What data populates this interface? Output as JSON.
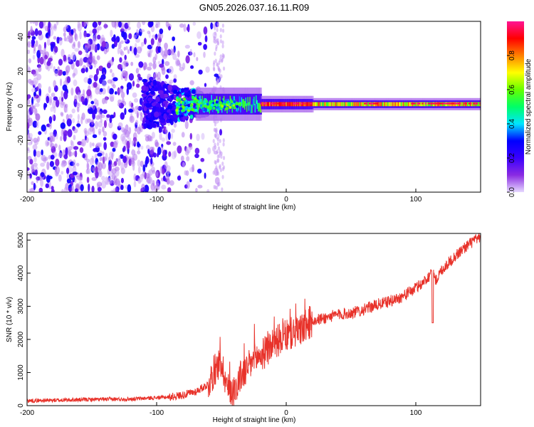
{
  "title": "GN05.2026.037.16.11.R09",
  "chart_data": [
    {
      "type": "heatmap",
      "xlabel": "Height of straight line (km)",
      "ylabel": "Frequency (Hz)",
      "xlim": [
        -200,
        150
      ],
      "ylim": [
        -50,
        49
      ],
      "xticks": [
        -200,
        -100,
        0,
        100
      ],
      "yticks": [
        -40,
        -20,
        0,
        20,
        40
      ],
      "ridge_frequency_hz": 1,
      "colorbar": {
        "label": "Normalized spectral amplitude",
        "range": [
          0,
          1
        ],
        "ticks": [
          "0.0",
          "0.2",
          "0.4",
          "0.6",
          "0.8"
        ],
        "tick_values": [
          0,
          0.2,
          0.4,
          0.6,
          0.8
        ],
        "colormap": [
          "#e6d9ff",
          "#8a2be2",
          "#3a00ff",
          "#0000ff",
          "#00e5ff",
          "#00ff66",
          "#66ff00",
          "#ffff00",
          "#ff8000",
          "#ff0000",
          "#ff1493"
        ]
      },
      "grid": false
    },
    {
      "type": "line",
      "xlabel": "Height of straight line (km)",
      "ylabel": "SNR (10 * v/v)",
      "xlim": [
        -200,
        150
      ],
      "ylim": [
        0,
        5200
      ],
      "xticks": [
        -200,
        -100,
        0,
        100
      ],
      "yticks": [
        0,
        1000,
        2000,
        3000,
        4000,
        5000
      ],
      "color": "#e8322a",
      "series": [
        {
          "name": "SNR",
          "x": [
            -200,
            -180,
            -160,
            -140,
            -120,
            -100,
            -90,
            -80,
            -70,
            -60,
            -55,
            -50,
            -45,
            -40,
            -35,
            -30,
            -25,
            -20,
            -15,
            -10,
            -5,
            0,
            5,
            10,
            15,
            20,
            30,
            40,
            50,
            60,
            70,
            80,
            90,
            100,
            105,
            110,
            113,
            115,
            120,
            130,
            140,
            150
          ],
          "values": [
            150,
            160,
            180,
            190,
            200,
            240,
            260,
            320,
            420,
            650,
            1100,
            1300,
            500,
            450,
            900,
            1100,
            1400,
            1500,
            1650,
            1900,
            2000,
            2100,
            2200,
            2250,
            2400,
            2550,
            2650,
            2750,
            2800,
            2900,
            3050,
            3150,
            3300,
            3550,
            3700,
            3900,
            4200,
            3750,
            4100,
            4500,
            4850,
            5100
          ]
        }
      ],
      "grid": false
    }
  ]
}
